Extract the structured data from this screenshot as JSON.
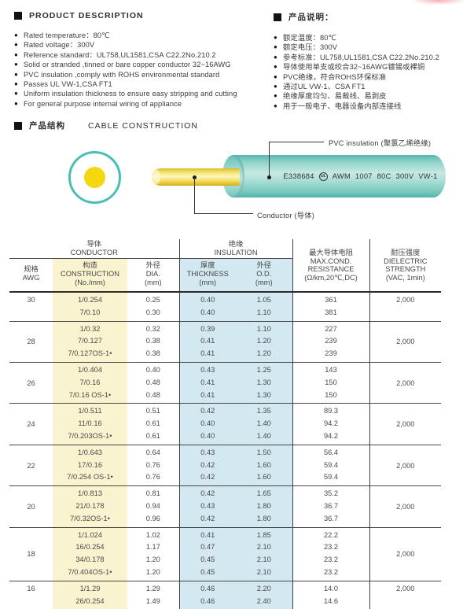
{
  "colors": {
    "teal": "#47bfb3",
    "conductor_yellow": "#f6d60e",
    "column_yellow": "#faf3cf",
    "column_blue": "#d3e8f1"
  },
  "product_description": {
    "title": "PRODUCT DESCRIPTION",
    "items": [
      "Rated temperature：80℃",
      "Rated voltage：300V",
      "Reference standard：UL758,UL1581,CSA C22.2No.210.2",
      "Solid or stranded ,tinned or bare copper conductor 32~16AWG",
      "PVC insulation ,comply with ROHS environmental standard",
      "Passes UL VW-1,CSA FT1",
      "Uniform insulation thickness to ensure easy stripping and cutting",
      "For general purpose internal wiring of appliance"
    ]
  },
  "product_notes": {
    "title": "产品说明：",
    "items": [
      "额定温度：80℃",
      "额定电压：300V",
      "参考标准：UL758,UL1581,CSA C22.2No.210.2",
      "导体使用单支或绞合32~16AWG镀锡或裸铜",
      "PVC绝缘，符合ROHS环保标准",
      "通过UL VW-1、CSA FT1",
      "绝缘厚度均匀、易裁线、易剥皮",
      "用于一般电子、电器设备内部连接线"
    ]
  },
  "construction": {
    "title_cn": "产品结构",
    "title_en": "CABLE CONSTRUCTION",
    "insulation_label": "PVC insulation (聚氯乙烯绝缘)",
    "conductor_label": "Conductor (导体)",
    "cable_print_left": "E338684",
    "cable_print_ul": "UL",
    "cable_print_right": "AWM 1007 80C 300V VW-1"
  },
  "table": {
    "groups": {
      "conductor": {
        "cn": "导体",
        "en": "CONDUCTOR"
      },
      "insulation": {
        "cn": "绝缘",
        "en": "INSULATION"
      }
    },
    "columns": {
      "awg": {
        "cn": "规格",
        "en": "AWG"
      },
      "construction": {
        "cn": "构造",
        "en": "CONSTRUCTION",
        "unit": "(No./mm)"
      },
      "dia": {
        "cn": "外径",
        "en": "DIA.",
        "unit": "(mm)"
      },
      "thickness": {
        "cn": "厚度",
        "en": "THICKNESS",
        "unit": "(mm)"
      },
      "od": {
        "cn": "外径",
        "en": "O.D.",
        "unit": "(mm)"
      },
      "resistance": {
        "cn": "最大导体电阻",
        "en": "MAX.COND.",
        "en2": "RESISTANCE",
        "unit": "(Ω/km,20℃,DC)"
      },
      "dielectric": {
        "cn": "耐压强度",
        "en": "DIELECTRIC",
        "en2": "STRENGTH",
        "unit": "(VAC, 1min)"
      }
    },
    "rows": [
      {
        "awg": "30",
        "valign": "top",
        "dielectric": "2,000",
        "lines": [
          [
            "1/0.254",
            "0.25",
            "0.40",
            "1.05",
            "361"
          ],
          [
            "7/0.10",
            "0.30",
            "0.40",
            "1.10",
            "381"
          ]
        ]
      },
      {
        "awg": "28",
        "dielectric": "2,000",
        "lines": [
          [
            "1/0.32",
            "0.32",
            "0.39",
            "1.10",
            "227"
          ],
          [
            "7/0.127",
            "0.38",
            "0.41",
            "1.20",
            "239"
          ],
          [
            "7/0.127OS-1•",
            "0.38",
            "0.41",
            "1.20",
            "239"
          ]
        ]
      },
      {
        "awg": "26",
        "dielectric": "2,000",
        "lines": [
          [
            "1/0.404",
            "0.40",
            "0.43",
            "1.25",
            "143"
          ],
          [
            "7/0.16",
            "0.48",
            "0.41",
            "1.30",
            "150"
          ],
          [
            "7/0.16 OS-1•",
            "0.48",
            "0.41",
            "1.30",
            "150"
          ]
        ]
      },
      {
        "awg": "24",
        "dielectric": "2,000",
        "lines": [
          [
            "1/0.511",
            "0.51",
            "0.42",
            "1.35",
            "89.3"
          ],
          [
            "11/0.16",
            "0.61",
            "0.40",
            "1.40",
            "94.2"
          ],
          [
            "7/0.203OS-1•",
            "0.61",
            "0.40",
            "1.40",
            "94.2"
          ]
        ]
      },
      {
        "awg": "22",
        "dielectric": "2,000",
        "lines": [
          [
            "1/0.643",
            "0.64",
            "0.43",
            "1.50",
            "56.4"
          ],
          [
            "17/0.16",
            "0.76",
            "0.42",
            "1.60",
            "59.4"
          ],
          [
            "7/0.254 OS-1•",
            "0.76",
            "0.42",
            "1.60",
            "59.4"
          ]
        ]
      },
      {
        "awg": "20",
        "dielectric": "2,000",
        "lines": [
          [
            "1/0.813",
            "0.81",
            "0.42",
            "1.65",
            "35.2"
          ],
          [
            "21/0.178",
            "0.94",
            "0.43",
            "1.80",
            "36.7"
          ],
          [
            "7/0.32OS-1•",
            "0.96",
            "0.42",
            "1.80",
            "36.7"
          ]
        ]
      },
      {
        "awg": "18",
        "dielectric": "2,000",
        "lines": [
          [
            "1/1.024",
            "1.02",
            "0.41",
            "1.85",
            "22.2"
          ],
          [
            "16/0.254",
            "1.17",
            "0.47",
            "2.10",
            "23.2"
          ],
          [
            "34/0.178",
            "1.20",
            "0.45",
            "2.10",
            "23.2"
          ],
          [
            "7/0.404OS-1•",
            "1.20",
            "0.45",
            "2.10",
            "23.2"
          ]
        ]
      },
      {
        "awg": "16",
        "valign": "top",
        "dielectric": "2,000",
        "lines": [
          [
            "1/1.29",
            "1.29",
            "0.46",
            "2.20",
            "14.0"
          ],
          [
            "26/0.254",
            "1.49",
            "0.46",
            "2.40",
            "14.6"
          ]
        ]
      }
    ]
  }
}
